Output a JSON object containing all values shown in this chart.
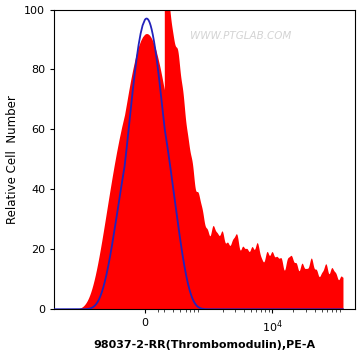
{
  "xlabel": "98037-2-RR(Thrombomodulin),PE-A",
  "ylabel": "Relative Cell  Number",
  "ylim": [
    0,
    100
  ],
  "yticks": [
    0,
    20,
    40,
    60,
    80,
    100
  ],
  "background_color": "#ffffff",
  "plot_bg_color": "#ffffff",
  "watermark": "WWW.PTGLAB.COM",
  "blue_line_color": "#2222bb",
  "red_fill_color": "#ff0000",
  "fig_width": 3.61,
  "fig_height": 3.56,
  "dpi": 100,
  "symlog_linthresh": 300,
  "symlog_linscale": 0.25,
  "xlim": [
    -3000,
    150000
  ]
}
